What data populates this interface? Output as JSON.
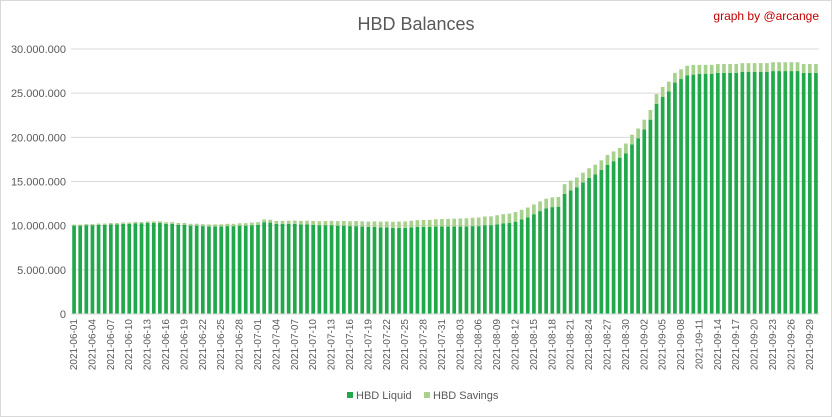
{
  "chart_data": {
    "type": "bar",
    "stacked": true,
    "title": "HBD Balances",
    "credit": "graph by @arcange",
    "ylim": [
      0,
      30000000
    ],
    "y_ticks": [
      0,
      5000000,
      10000000,
      15000000,
      20000000,
      25000000,
      30000000
    ],
    "y_tick_labels": [
      "0",
      "5.000.000",
      "10.000.000",
      "15.000.000",
      "20.000.000",
      "25.000.000",
      "30.000.000"
    ],
    "grid": "horizontal",
    "legend": "bottom",
    "colors": {
      "liquid": "#21a84a",
      "savings": "#a9d18e",
      "grid": "#d9d9d9",
      "text": "#595959",
      "credit": "#c00000"
    },
    "categories": [
      "2021-06-01",
      "2021-06-02",
      "2021-06-03",
      "2021-06-04",
      "2021-06-05",
      "2021-06-06",
      "2021-06-07",
      "2021-06-08",
      "2021-06-09",
      "2021-06-10",
      "2021-06-11",
      "2021-06-12",
      "2021-06-13",
      "2021-06-14",
      "2021-06-15",
      "2021-06-16",
      "2021-06-17",
      "2021-06-18",
      "2021-06-19",
      "2021-06-20",
      "2021-06-21",
      "2021-06-22",
      "2021-06-23",
      "2021-06-24",
      "2021-06-25",
      "2021-06-26",
      "2021-06-27",
      "2021-06-28",
      "2021-06-29",
      "2021-06-30",
      "2021-07-01",
      "2021-07-02",
      "2021-07-03",
      "2021-07-04",
      "2021-07-05",
      "2021-07-06",
      "2021-07-07",
      "2021-07-08",
      "2021-07-09",
      "2021-07-10",
      "2021-07-11",
      "2021-07-12",
      "2021-07-13",
      "2021-07-14",
      "2021-07-15",
      "2021-07-16",
      "2021-07-17",
      "2021-07-18",
      "2021-07-19",
      "2021-07-20",
      "2021-07-21",
      "2021-07-22",
      "2021-07-23",
      "2021-07-24",
      "2021-07-25",
      "2021-07-26",
      "2021-07-27",
      "2021-07-28",
      "2021-07-29",
      "2021-07-30",
      "2021-07-31",
      "2021-08-01",
      "2021-08-02",
      "2021-08-03",
      "2021-08-04",
      "2021-08-05",
      "2021-08-06",
      "2021-08-07",
      "2021-08-08",
      "2021-08-09",
      "2021-08-10",
      "2021-08-11",
      "2021-08-12",
      "2021-08-13",
      "2021-08-14",
      "2021-08-15",
      "2021-08-16",
      "2021-08-17",
      "2021-08-18",
      "2021-08-19",
      "2021-08-20",
      "2021-08-21",
      "2021-08-22",
      "2021-08-23",
      "2021-08-24",
      "2021-08-25",
      "2021-08-26",
      "2021-08-27",
      "2021-08-28",
      "2021-08-29",
      "2021-08-30",
      "2021-08-31",
      "2021-09-01",
      "2021-09-02",
      "2021-09-03",
      "2021-09-04",
      "2021-09-05",
      "2021-09-06",
      "2021-09-07",
      "2021-09-08",
      "2021-09-09",
      "2021-09-10",
      "2021-09-11",
      "2021-09-12",
      "2021-09-13",
      "2021-09-14",
      "2021-09-15",
      "2021-09-16",
      "2021-09-17",
      "2021-09-18",
      "2021-09-19",
      "2021-09-20",
      "2021-09-21",
      "2021-09-22",
      "2021-09-23",
      "2021-09-24",
      "2021-09-25",
      "2021-09-26",
      "2021-09-27",
      "2021-09-28",
      "2021-09-29",
      "2021-09-30"
    ],
    "x_tick_labels": [
      "2021-06-01",
      "2021-06-04",
      "2021-06-07",
      "2021-06-10",
      "2021-06-13",
      "2021-06-16",
      "2021-06-19",
      "2021-06-22",
      "2021-06-25",
      "2021-06-28",
      "2021-07-01",
      "2021-07-04",
      "2021-07-07",
      "2021-07-10",
      "2021-07-13",
      "2021-07-16",
      "2021-07-19",
      "2021-07-22",
      "2021-07-25",
      "2021-07-28",
      "2021-07-31",
      "2021-08-03",
      "2021-08-06",
      "2021-08-09",
      "2021-08-12",
      "2021-08-15",
      "2021-08-18",
      "2021-08-21",
      "2021-08-24",
      "2021-08-27",
      "2021-08-30",
      "2021-09-02",
      "2021-09-05",
      "2021-09-08",
      "2021-09-11",
      "2021-09-14",
      "2021-09-17",
      "2021-09-20",
      "2021-09-23",
      "2021-09-26",
      "2021-09-29"
    ],
    "series": [
      {
        "name": "HBD Liquid",
        "values": [
          10000000,
          10000000,
          10050000,
          10050000,
          10100000,
          10100000,
          10150000,
          10150000,
          10200000,
          10200000,
          10250000,
          10250000,
          10300000,
          10300000,
          10300000,
          10200000,
          10200000,
          10100000,
          10100000,
          10000000,
          10000000,
          9950000,
          9900000,
          9900000,
          9900000,
          9950000,
          9950000,
          10000000,
          10000000,
          10050000,
          10100000,
          10400000,
          10350000,
          10200000,
          10200000,
          10200000,
          10200000,
          10150000,
          10150000,
          10100000,
          10050000,
          10050000,
          10050000,
          10000000,
          10000000,
          9950000,
          9950000,
          9900000,
          9850000,
          9850000,
          9800000,
          9800000,
          9750000,
          9750000,
          9750000,
          9800000,
          9850000,
          9850000,
          9850000,
          9900000,
          9900000,
          9900000,
          9900000,
          9900000,
          9900000,
          9950000,
          9950000,
          10050000,
          10050000,
          10150000,
          10250000,
          10300000,
          10450000,
          10700000,
          10950000,
          11300000,
          11650000,
          11950000,
          12100000,
          12150000,
          13600000,
          14000000,
          14350000,
          14900000,
          15400000,
          15800000,
          16300000,
          16900000,
          17300000,
          17700000,
          18200000,
          19200000,
          19900000,
          20900000,
          22000000,
          23800000,
          24600000,
          25200000,
          26200000,
          26600000,
          27000000,
          27100000,
          27200000,
          27200000,
          27200000,
          27300000,
          27300000,
          27300000,
          27300000,
          27400000,
          27400000,
          27400000,
          27400000,
          27400000,
          27500000,
          27500000,
          27500000,
          27500000,
          27500000,
          27300000,
          27300000,
          27300000
        ]
      },
      {
        "name": "HBD Savings",
        "values": [
          120000,
          120000,
          130000,
          130000,
          140000,
          140000,
          150000,
          150000,
          160000,
          160000,
          170000,
          170000,
          180000,
          180000,
          190000,
          190000,
          200000,
          200000,
          210000,
          210000,
          220000,
          220000,
          230000,
          240000,
          250000,
          260000,
          260000,
          270000,
          280000,
          300000,
          300000,
          310000,
          320000,
          330000,
          340000,
          350000,
          370000,
          390000,
          410000,
          430000,
          450000,
          470000,
          490000,
          510000,
          530000,
          550000,
          570000,
          590000,
          610000,
          630000,
          650000,
          670000,
          690000,
          710000,
          730000,
          750000,
          770000,
          790000,
          810000,
          830000,
          850000,
          870000,
          890000,
          910000,
          930000,
          950000,
          970000,
          990000,
          1010000,
          1030000,
          1050000,
          1070000,
          1090000,
          1100000,
          1100000,
          1100000,
          1100000,
          1100000,
          1100000,
          1100000,
          1100000,
          1100000,
          1100000,
          1100000,
          1100000,
          1100000,
          1100000,
          1100000,
          1100000,
          1100000,
          1100000,
          1100000,
          1100000,
          1100000,
          1100000,
          1100000,
          1100000,
          1100000,
          1100000,
          1100000,
          1100000,
          1100000,
          1000000,
          1000000,
          1000000,
          1000000,
          1000000,
          1000000,
          1000000,
          1000000,
          1000000,
          1000000,
          1000000,
          1000000,
          1000000,
          1000000,
          1000000,
          1000000,
          1000000,
          1000000,
          1000000,
          1000000
        ]
      }
    ]
  }
}
